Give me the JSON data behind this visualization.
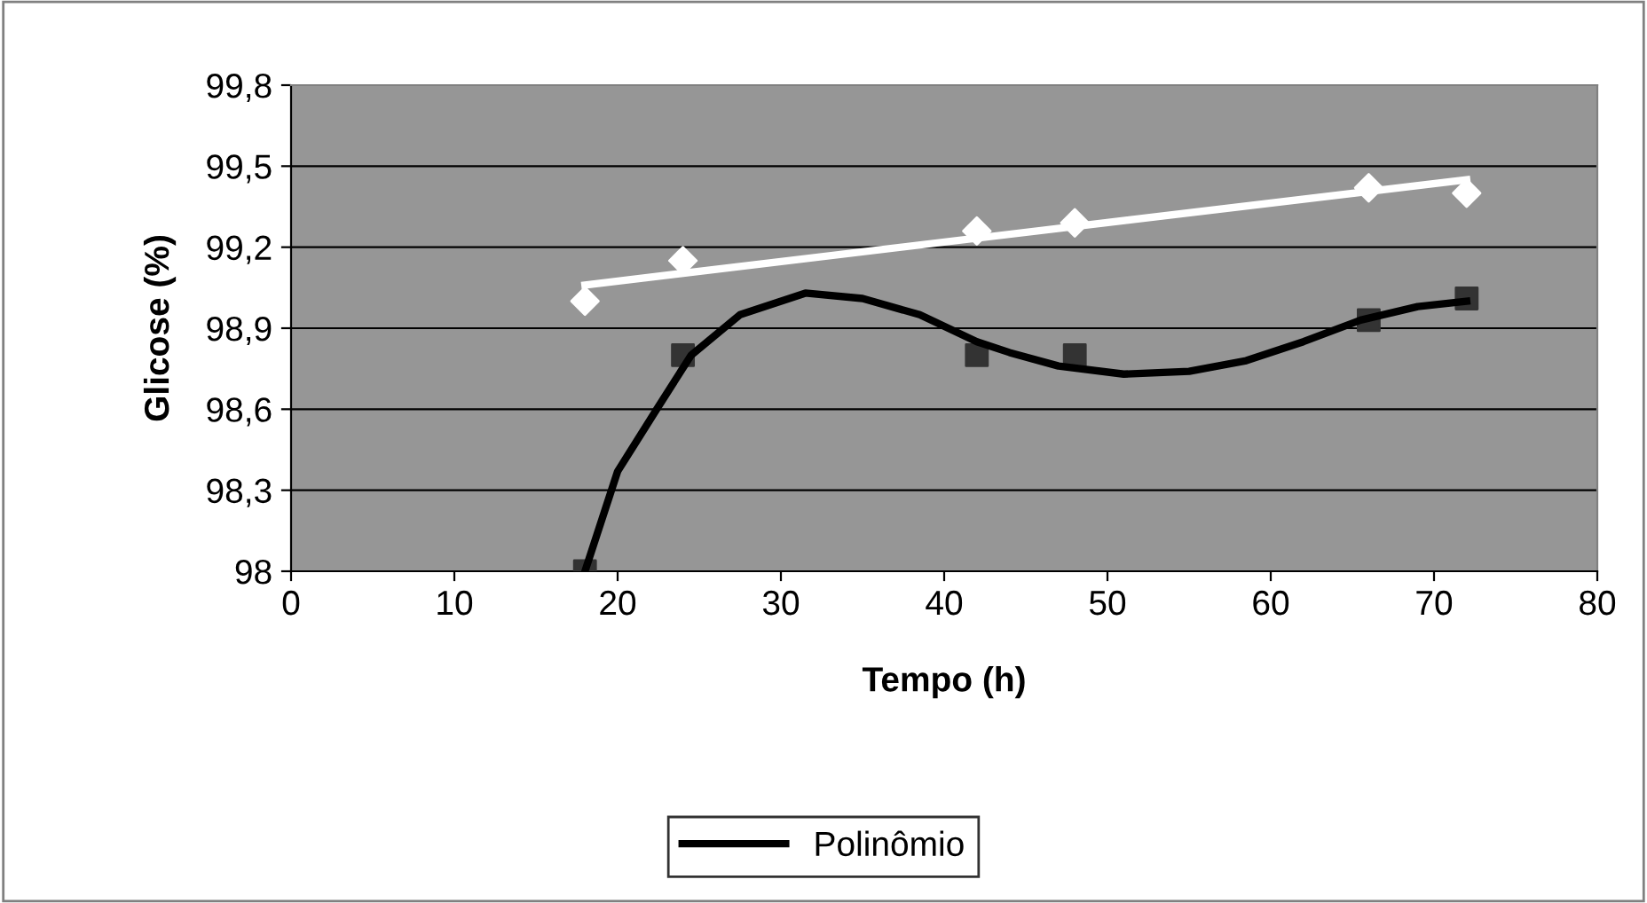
{
  "chart_data": {
    "type": "scatter",
    "xlabel": "Tempo (h)",
    "ylabel": "Glicose (%)",
    "xlim": [
      0,
      80
    ],
    "xticks": [
      0,
      10,
      20,
      30,
      40,
      50,
      60,
      70,
      80
    ],
    "ylim": [
      98,
      99.8
    ],
    "yticks": [
      {
        "value": 98,
        "label": "98"
      },
      {
        "value": 98.3,
        "label": "98,3"
      },
      {
        "value": 98.6,
        "label": "98,6"
      },
      {
        "value": 98.9,
        "label": "98,9"
      },
      {
        "value": 99.2,
        "label": "99,2"
      },
      {
        "value": 99.5,
        "label": "99,5"
      },
      {
        "value": 99.8,
        "label": "99,8"
      }
    ],
    "grid": "y",
    "legend": "bottom",
    "series": [
      {
        "marker": "diamond",
        "color": "#ffffff",
        "x": [
          18,
          24,
          42,
          48,
          66,
          72
        ],
        "values": [
          99.0,
          99.15,
          99.26,
          99.29,
          99.42,
          99.4
        ]
      },
      {
        "marker": "square",
        "color": "#333333",
        "x": [
          18,
          24,
          42,
          48,
          66,
          72
        ],
        "values": [
          98.0,
          98.8,
          98.8,
          98.8,
          98.93,
          99.01
        ]
      },
      {
        "type": "line",
        "color": "#ffffff",
        "x": [
          18,
          72
        ],
        "values": [
          99.06,
          99.45
        ]
      },
      {
        "type": "line",
        "name": "Polinômio",
        "color": "#000000",
        "x": [
          18,
          20,
          22.5,
          24.5,
          27.5,
          31.5,
          35,
          38.5,
          42,
          44,
          47,
          51,
          55,
          58.5,
          62,
          65.5,
          69,
          72
        ],
        "values": [
          98.0,
          98.37,
          98.61,
          98.8,
          98.95,
          99.03,
          99.01,
          98.95,
          98.85,
          98.81,
          98.76,
          98.73,
          98.74,
          98.78,
          98.85,
          98.93,
          98.98,
          99.0
        ]
      }
    ]
  }
}
